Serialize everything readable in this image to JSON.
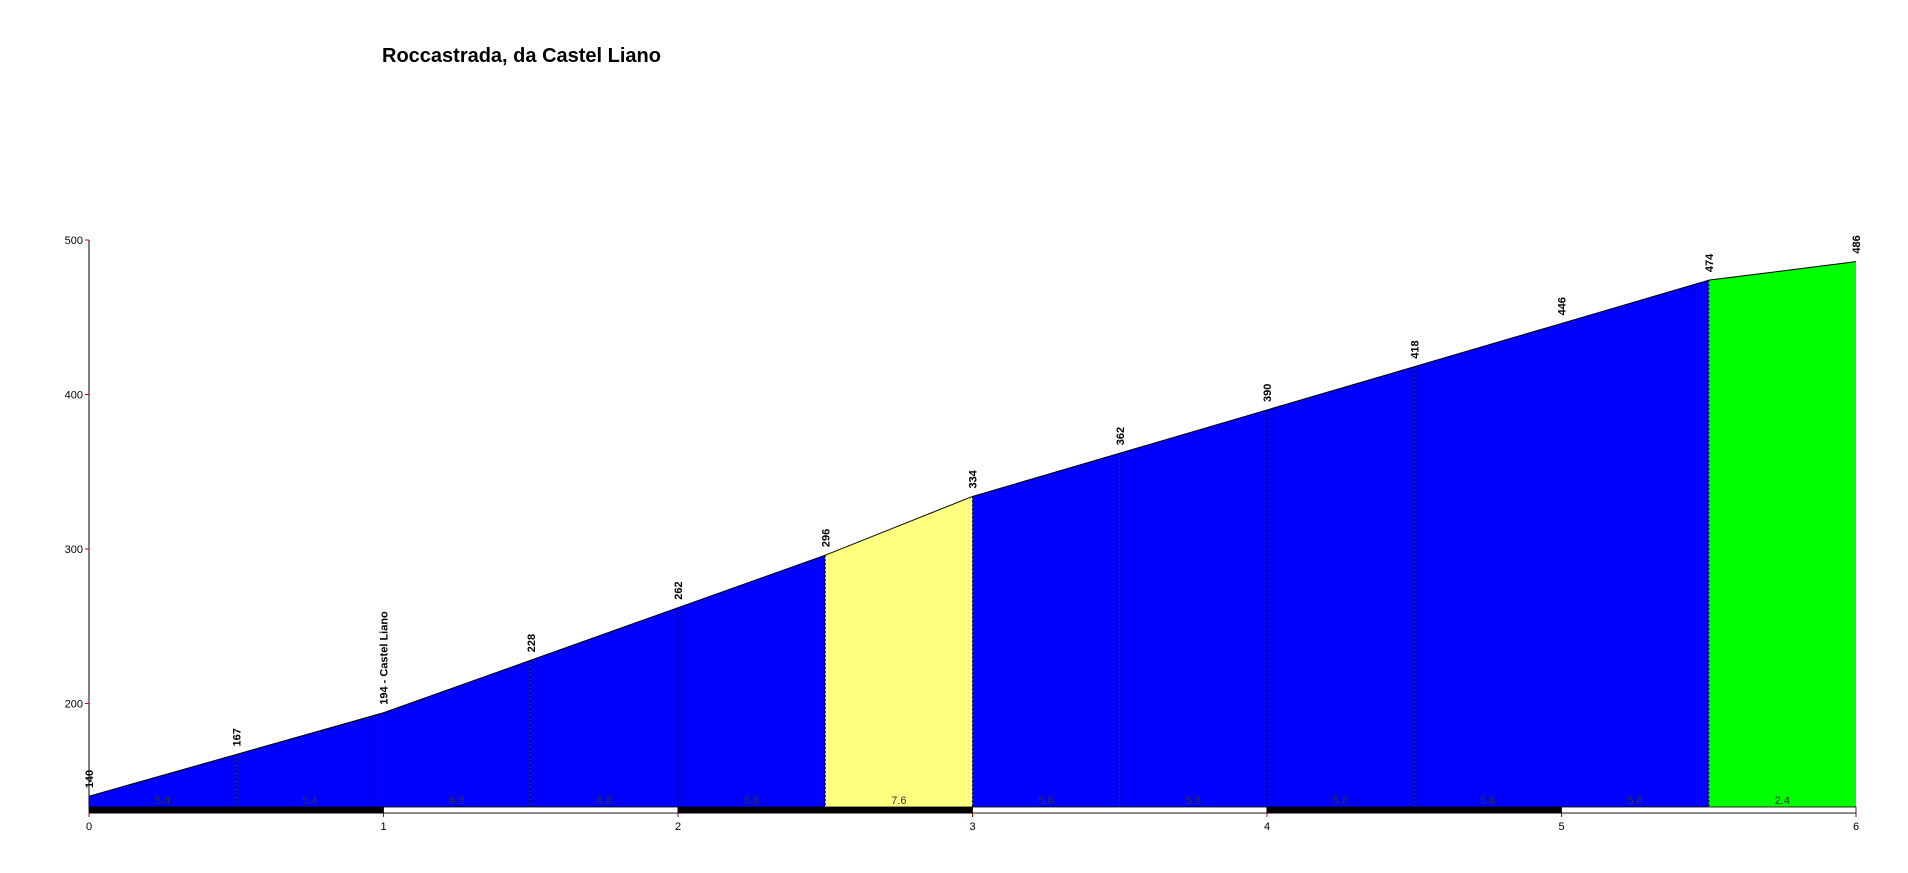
{
  "chart_data": {
    "type": "elevation-profile",
    "title": "Roccastrada, da Castel Liano",
    "x": [
      0,
      0.5,
      1,
      1.5,
      2,
      2.5,
      3,
      3.5,
      4,
      4.5,
      5,
      5.5,
      6
    ],
    "values": [
      140,
      167,
      194,
      228,
      262,
      296,
      334,
      362,
      390,
      418,
      446,
      474,
      486
    ],
    "value_labels": [
      "140",
      "167",
      "194 - Castel Liano",
      "228",
      "262",
      "296",
      "334",
      "362",
      "390",
      "418",
      "446",
      "474",
      "486"
    ],
    "gradients": [
      5.4,
      5.4,
      6.8,
      6.8,
      6.8,
      7.6,
      5.6,
      5.6,
      5.6,
      5.6,
      5.6,
      2.4
    ],
    "segment_colors": [
      "#0000ff",
      "#0000ff",
      "#0000ff",
      "#0000ff",
      "#0000ff",
      "#ffff80",
      "#0000ff",
      "#0000ff",
      "#0000ff",
      "#0000ff",
      "#0000ff",
      "#00ff00"
    ],
    "xlim": [
      0,
      6
    ],
    "xticks": [
      0,
      1,
      2,
      3,
      4,
      5,
      6
    ],
    "ylim": [
      133,
      500
    ],
    "yticks": [
      200,
      300,
      400,
      500
    ]
  }
}
